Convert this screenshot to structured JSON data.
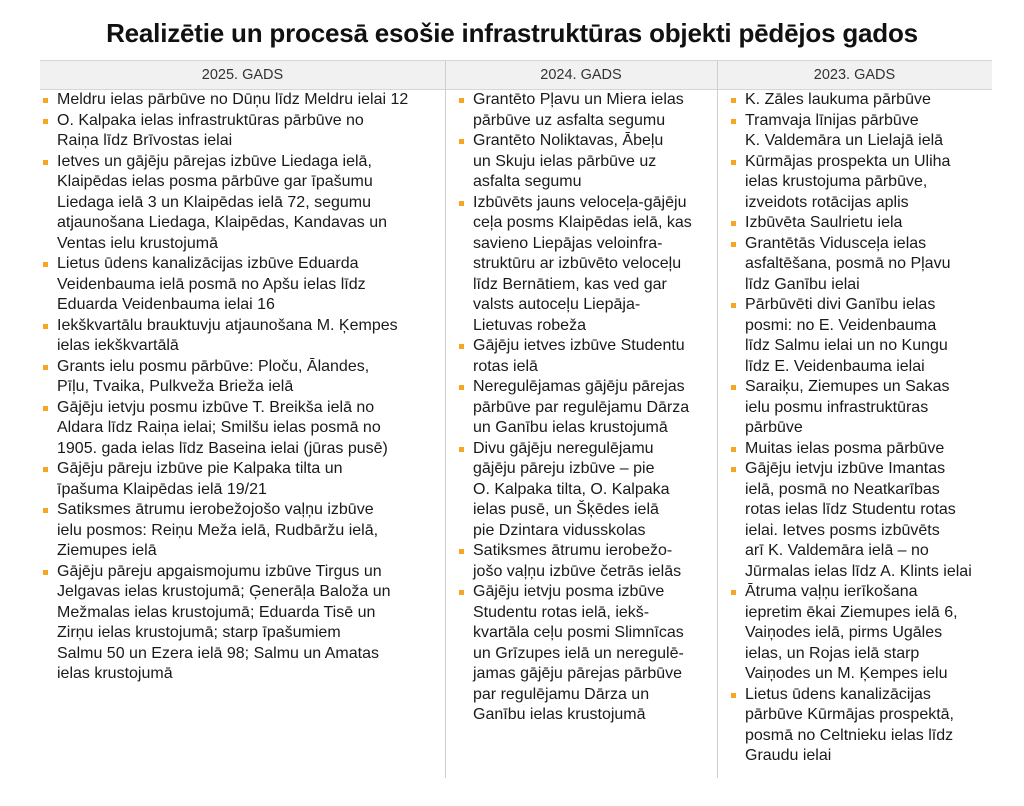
{
  "title": "Realizētie un procesā esošie infrastruktūras objekti pēdējos gados",
  "bullet_color": "#f5a623",
  "columns": [
    {
      "header": "2025. GADS",
      "items": [
        "Meldru ielas pārbūve no Dūņu līdz Meldru ielai 12",
        "O. Kalpaka ielas infrastruktūras pārbūve no\nRaiņa līdz Brīvostas ielai",
        "Ietves un gājēju pārejas izbūve Liedaga ielā,\nKlaipēdas ielas posma pārbūve gar īpašumu\nLiedaga ielā 3 un Klaipēdas ielā 72, segumu\natjaunošana Liedaga, Klaipēdas, Kandavas un\nVentas ielu krustojumā",
        "Lietus ūdens kanalizācijas izbūve Eduarda\nVeidenbauma ielā posmā no Apšu ielas līdz\nEduarda Veidenbauma ielai 16",
        "Iekškvartālu brauktuvju atjaunošana M. Ķempes\nielas iekškvartālā",
        "Grants ielu posmu pārbūve: Ploču, Ālandes,\nPīļu, Tvaika, Pulkveža Brieža ielā",
        "Gājēju ietvju posmu izbūve T. Breikša ielā no\nAldara līdz Raiņa ielai;  Smilšu ielas posmā no\n1905. gada ielas līdz Baseina ielai (jūras pusē)",
        "Gājēju pāreju izbūve pie Kalpaka tilta un\nīpašuma Klaipēdas ielā 19/21",
        "Satiksmes ātrumu ierobežojošo vaļņu izbūve\nielu posmos: Reiņu Meža ielā, Rudbāržu ielā,\nZiemupes ielā",
        "Gājēju pāreju apgaismojumu izbūve Tirgus un\nJelgavas ielas krustojumā; Ģenerāļa Baloža un\nMežmalas ielas krustojumā; Eduarda Tisē un\nZirņu ielas krustojumā; starp īpašumiem\nSalmu 50 un Ezera ielā 98; Salmu un Amatas\nielas krustojumā"
      ]
    },
    {
      "header": "2024. GADS",
      "items": [
        "Grantēto Pļavu un Miera ielas\npārbūve uz asfalta segumu",
        "Grantēto Noliktavas, Ābeļu\nun Skuju ielas pārbūve uz\nasfalta segumu",
        "Izbūvēts jauns veloceļa-gājēju\nceļa posms Klaipēdas ielā, kas\nsavieno Liepājas veloinfra-\nstruktūru ar izbūvēto veloceļu\nlīdz Bernātiem, kas ved gar\nvalsts autoceļu Liepāja-\nLietuvas robeža",
        "Gājēju ietves izbūve Studentu\nrotas ielā",
        "Neregulējamas gājēju pārejas\npārbūve par regulējamu Dārza\nun Ganību ielas krustojumā",
        "Divu gājēju neregulējamu\ngājēju pāreju izbūve – pie\nO. Kalpaka tilta, O. Kalpaka\nielas pusē, un Šķēdes ielā\npie Dzintara vidusskolas",
        "Satiksmes ātrumu ierobežo-\njošo vaļņu izbūve četrās ielās",
        "Gājēju ietvju posma izbūve\nStudentu rotas ielā, iekš-\nkvartāla ceļu posmi Slimnīcas\nun Grīzupes ielā un neregulē-\njamas gājēju pārejas pārbūve\npar regulējamu Dārza un\nGanību ielas krustojumā"
      ]
    },
    {
      "header": "2023. GADS",
      "items": [
        "K. Zāles laukuma pārbūve",
        "Tramvaja līnijas pārbūve\nK. Valdemāra un Lielajā ielā",
        "Kūrmājas prospekta un Uliha\nielas krustojuma pārbūve,\nizveidots rotācijas aplis",
        "Izbūvēta Saulrietu iela",
        "Grantētās Vidusceļa ielas\nasfaltēšana, posmā no Pļavu\nlīdz Ganību ielai",
        "Pārbūvēti divi Ganību ielas\nposmi: no E. Veidenbauma\nlīdz Salmu ielai un no Kungu\nlīdz E. Veidenbauma ielai",
        "Saraiķu, Ziemupes un Sakas\nielu posmu infrastruktūras\npārbūve",
        "Muitas ielas posma pārbūve",
        "Gājēju ietvju izbūve Imantas\nielā, posmā no Neatkarības\nrotas ielas līdz Studentu rotas\nielai. Ietves posms izbūvēts\narī K. Valdemāra ielā – no\nJūrmalas ielas līdz A. Klints ielai",
        "Ātruma vaļņu ierīkošana\niepretim ēkai Ziemupes ielā 6,\nVaiņodes ielā, pirms Ugāles\nielas, un Rojas ielā starp\nVaiņodes un M. Ķempes ielu",
        "Lietus ūdens kanalizācijas\npārbūve Kūrmājas prospektā,\nposmā no Celtnieku ielas līdz\nGraudu ielai"
      ]
    }
  ]
}
